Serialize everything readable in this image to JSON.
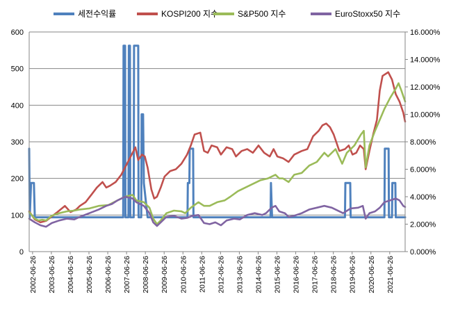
{
  "chart_data": {
    "type": "line",
    "title": "",
    "legend_position": "top",
    "grid": true,
    "x_ticks": [
      "2002-06-26",
      "2003-06-26",
      "2004-06-26",
      "2005-06-26",
      "2006-06-26",
      "2007-06-26",
      "2008-06-26",
      "2009-06-26",
      "2010-06-26",
      "2011-06-26",
      "2012-06-26",
      "2013-06-26",
      "2014-06-26",
      "2015-06-26",
      "2016-06-26",
      "2017-06-26",
      "2018-06-26",
      "2019-06-26",
      "2020-06-26",
      "2021-06-26"
    ],
    "x_range": [
      2002.3,
      2022.3
    ],
    "y_left": {
      "range": [
        0,
        600
      ],
      "ticks": [
        "0",
        "100",
        "200",
        "300",
        "400",
        "500",
        "600"
      ]
    },
    "y_right": {
      "range": [
        0,
        16
      ],
      "ticks": [
        "0.000%",
        "2.000%",
        "4.000%",
        "6.000%",
        "8.000%",
        "10.000%",
        "12.000%",
        "14.000%",
        "16.000%"
      ]
    },
    "series": [
      {
        "name": "세전수익률",
        "axis": "right",
        "color": "#4F81BD",
        "step": true,
        "points": [
          [
            2002.3,
            7.5
          ],
          [
            2002.33,
            2.5
          ],
          [
            2002.4,
            5.0
          ],
          [
            2002.55,
            5.0
          ],
          [
            2002.6,
            2.5
          ],
          [
            2007.3,
            2.5
          ],
          [
            2007.32,
            15.0
          ],
          [
            2007.4,
            15.0
          ],
          [
            2007.42,
            2.5
          ],
          [
            2007.58,
            2.5
          ],
          [
            2007.6,
            15.0
          ],
          [
            2007.66,
            15.0
          ],
          [
            2007.68,
            2.5
          ],
          [
            2007.86,
            2.5
          ],
          [
            2007.88,
            15.0
          ],
          [
            2008.1,
            15.0
          ],
          [
            2008.12,
            2.5
          ],
          [
            2008.26,
            2.5
          ],
          [
            2008.28,
            10.0
          ],
          [
            2008.36,
            10.0
          ],
          [
            2008.4,
            5.0
          ],
          [
            2008.6,
            2.5
          ],
          [
            2010.72,
            2.5
          ],
          [
            2010.74,
            5.0
          ],
          [
            2010.82,
            5.0
          ],
          [
            2010.84,
            7.5
          ],
          [
            2011.02,
            7.5
          ],
          [
            2011.04,
            2.5
          ],
          [
            2015.14,
            2.5
          ],
          [
            2015.16,
            5.0
          ],
          [
            2015.22,
            2.5
          ],
          [
            2019.1,
            2.5
          ],
          [
            2019.12,
            5.0
          ],
          [
            2019.38,
            5.0
          ],
          [
            2019.4,
            2.5
          ],
          [
            2021.2,
            2.5
          ],
          [
            2021.22,
            7.5
          ],
          [
            2021.42,
            7.5
          ],
          [
            2021.44,
            2.5
          ],
          [
            2021.6,
            2.5
          ],
          [
            2021.62,
            5.0
          ],
          [
            2021.78,
            5.0
          ],
          [
            2021.8,
            2.5
          ],
          [
            2022.3,
            2.5
          ]
        ]
      },
      {
        "name": "KOSPI200 지수",
        "axis": "left",
        "color": "#C0504D",
        "points": [
          [
            2002.3,
            110
          ],
          [
            2002.6,
            88
          ],
          [
            2002.9,
            80
          ],
          [
            2003.2,
            84
          ],
          [
            2003.5,
            96
          ],
          [
            2003.8,
            108
          ],
          [
            2004.2,
            125
          ],
          [
            2004.5,
            108
          ],
          [
            2004.8,
            115
          ],
          [
            2005.0,
            125
          ],
          [
            2005.3,
            135
          ],
          [
            2005.6,
            155
          ],
          [
            2005.9,
            175
          ],
          [
            2006.2,
            190
          ],
          [
            2006.4,
            175
          ],
          [
            2006.6,
            180
          ],
          [
            2006.9,
            190
          ],
          [
            2007.2,
            210
          ],
          [
            2007.5,
            240
          ],
          [
            2007.8,
            270
          ],
          [
            2007.95,
            285
          ],
          [
            2008.1,
            250
          ],
          [
            2008.3,
            265
          ],
          [
            2008.45,
            260
          ],
          [
            2008.6,
            230
          ],
          [
            2008.8,
            170
          ],
          [
            2008.95,
            145
          ],
          [
            2009.1,
            150
          ],
          [
            2009.3,
            175
          ],
          [
            2009.5,
            205
          ],
          [
            2009.8,
            220
          ],
          [
            2010.1,
            225
          ],
          [
            2010.4,
            240
          ],
          [
            2010.7,
            265
          ],
          [
            2010.9,
            290
          ],
          [
            2011.1,
            320
          ],
          [
            2011.4,
            325
          ],
          [
            2011.6,
            275
          ],
          [
            2011.8,
            270
          ],
          [
            2012.0,
            290
          ],
          [
            2012.3,
            285
          ],
          [
            2012.5,
            265
          ],
          [
            2012.8,
            285
          ],
          [
            2013.1,
            280
          ],
          [
            2013.3,
            260
          ],
          [
            2013.6,
            275
          ],
          [
            2013.9,
            280
          ],
          [
            2014.2,
            270
          ],
          [
            2014.5,
            290
          ],
          [
            2014.8,
            270
          ],
          [
            2015.1,
            260
          ],
          [
            2015.3,
            280
          ],
          [
            2015.5,
            260
          ],
          [
            2015.8,
            255
          ],
          [
            2016.1,
            245
          ],
          [
            2016.4,
            265
          ],
          [
            2016.8,
            275
          ],
          [
            2017.1,
            280
          ],
          [
            2017.4,
            315
          ],
          [
            2017.7,
            330
          ],
          [
            2017.9,
            345
          ],
          [
            2018.1,
            350
          ],
          [
            2018.3,
            340
          ],
          [
            2018.5,
            320
          ],
          [
            2018.8,
            275
          ],
          [
            2019.1,
            280
          ],
          [
            2019.3,
            290
          ],
          [
            2019.5,
            265
          ],
          [
            2019.7,
            270
          ],
          [
            2019.9,
            290
          ],
          [
            2020.1,
            280
          ],
          [
            2020.2,
            225
          ],
          [
            2020.4,
            275
          ],
          [
            2020.6,
            320
          ],
          [
            2020.8,
            360
          ],
          [
            2020.95,
            440
          ],
          [
            2021.1,
            480
          ],
          [
            2021.4,
            490
          ],
          [
            2021.6,
            470
          ],
          [
            2021.8,
            430
          ],
          [
            2022.0,
            410
          ],
          [
            2022.2,
            380
          ],
          [
            2022.3,
            355
          ]
        ]
      },
      {
        "name": "S&P500 지수",
        "axis": "left",
        "color": "#9BBB59",
        "points": [
          [
            2002.3,
            108
          ],
          [
            2002.6,
            90
          ],
          [
            2002.8,
            85
          ],
          [
            2003.0,
            87
          ],
          [
            2003.2,
            85
          ],
          [
            2003.5,
            98
          ],
          [
            2003.9,
            105
          ],
          [
            2004.3,
            110
          ],
          [
            2004.7,
            112
          ],
          [
            2005.0,
            115
          ],
          [
            2005.5,
            118
          ],
          [
            2006.0,
            125
          ],
          [
            2006.5,
            127
          ],
          [
            2007.0,
            140
          ],
          [
            2007.4,
            150
          ],
          [
            2007.8,
            155
          ],
          [
            2008.0,
            140
          ],
          [
            2008.4,
            135
          ],
          [
            2008.7,
            120
          ],
          [
            2008.9,
            90
          ],
          [
            2009.1,
            75
          ],
          [
            2009.3,
            85
          ],
          [
            2009.6,
            105
          ],
          [
            2010.0,
            112
          ],
          [
            2010.4,
            110
          ],
          [
            2010.6,
            105
          ],
          [
            2010.9,
            120
          ],
          [
            2011.3,
            135
          ],
          [
            2011.6,
            125
          ],
          [
            2011.9,
            125
          ],
          [
            2012.3,
            135
          ],
          [
            2012.7,
            140
          ],
          [
            2013.0,
            150
          ],
          [
            2013.4,
            165
          ],
          [
            2013.8,
            175
          ],
          [
            2014.2,
            185
          ],
          [
            2014.6,
            195
          ],
          [
            2015.0,
            200
          ],
          [
            2015.4,
            210
          ],
          [
            2015.6,
            200
          ],
          [
            2015.8,
            200
          ],
          [
            2016.1,
            190
          ],
          [
            2016.4,
            210
          ],
          [
            2016.8,
            215
          ],
          [
            2017.2,
            235
          ],
          [
            2017.6,
            245
          ],
          [
            2018.0,
            270
          ],
          [
            2018.2,
            260
          ],
          [
            2018.6,
            280
          ],
          [
            2018.95,
            240
          ],
          [
            2019.2,
            270
          ],
          [
            2019.6,
            290
          ],
          [
            2019.95,
            320
          ],
          [
            2020.1,
            330
          ],
          [
            2020.2,
            230
          ],
          [
            2020.4,
            290
          ],
          [
            2020.7,
            330
          ],
          [
            2020.95,
            360
          ],
          [
            2021.2,
            390
          ],
          [
            2021.5,
            420
          ],
          [
            2021.8,
            445
          ],
          [
            2021.95,
            460
          ],
          [
            2022.1,
            440
          ],
          [
            2022.3,
            410
          ]
        ]
      },
      {
        "name": "EuroStoxx50 지수",
        "axis": "left",
        "color": "#8064A2",
        "points": [
          [
            2002.3,
            90
          ],
          [
            2002.6,
            80
          ],
          [
            2002.9,
            72
          ],
          [
            2003.2,
            68
          ],
          [
            2003.5,
            78
          ],
          [
            2003.9,
            85
          ],
          [
            2004.3,
            90
          ],
          [
            2004.7,
            88
          ],
          [
            2005.0,
            95
          ],
          [
            2005.5,
            105
          ],
          [
            2006.0,
            115
          ],
          [
            2006.4,
            125
          ],
          [
            2006.7,
            130
          ],
          [
            2007.0,
            140
          ],
          [
            2007.4,
            150
          ],
          [
            2007.8,
            145
          ],
          [
            2008.0,
            135
          ],
          [
            2008.4,
            125
          ],
          [
            2008.7,
            105
          ],
          [
            2008.9,
            80
          ],
          [
            2009.1,
            70
          ],
          [
            2009.3,
            80
          ],
          [
            2009.6,
            95
          ],
          [
            2010.0,
            98
          ],
          [
            2010.4,
            90
          ],
          [
            2010.7,
            92
          ],
          [
            2011.0,
            98
          ],
          [
            2011.3,
            100
          ],
          [
            2011.6,
            78
          ],
          [
            2011.9,
            75
          ],
          [
            2012.2,
            80
          ],
          [
            2012.5,
            72
          ],
          [
            2012.8,
            85
          ],
          [
            2013.2,
            90
          ],
          [
            2013.5,
            88
          ],
          [
            2013.9,
            100
          ],
          [
            2014.3,
            105
          ],
          [
            2014.7,
            100
          ],
          [
            2014.9,
            105
          ],
          [
            2015.2,
            120
          ],
          [
            2015.4,
            125
          ],
          [
            2015.6,
            110
          ],
          [
            2015.9,
            105
          ],
          [
            2016.1,
            95
          ],
          [
            2016.4,
            98
          ],
          [
            2016.8,
            105
          ],
          [
            2017.2,
            115
          ],
          [
            2017.6,
            120
          ],
          [
            2018.0,
            125
          ],
          [
            2018.4,
            120
          ],
          [
            2018.8,
            110
          ],
          [
            2019.0,
            105
          ],
          [
            2019.4,
            118
          ],
          [
            2019.8,
            120
          ],
          [
            2020.05,
            125
          ],
          [
            2020.2,
            90
          ],
          [
            2020.4,
            105
          ],
          [
            2020.7,
            110
          ],
          [
            2020.95,
            120
          ],
          [
            2021.2,
            135
          ],
          [
            2021.5,
            140
          ],
          [
            2021.8,
            145
          ],
          [
            2022.0,
            140
          ],
          [
            2022.2,
            125
          ],
          [
            2022.3,
            122
          ]
        ]
      }
    ]
  }
}
